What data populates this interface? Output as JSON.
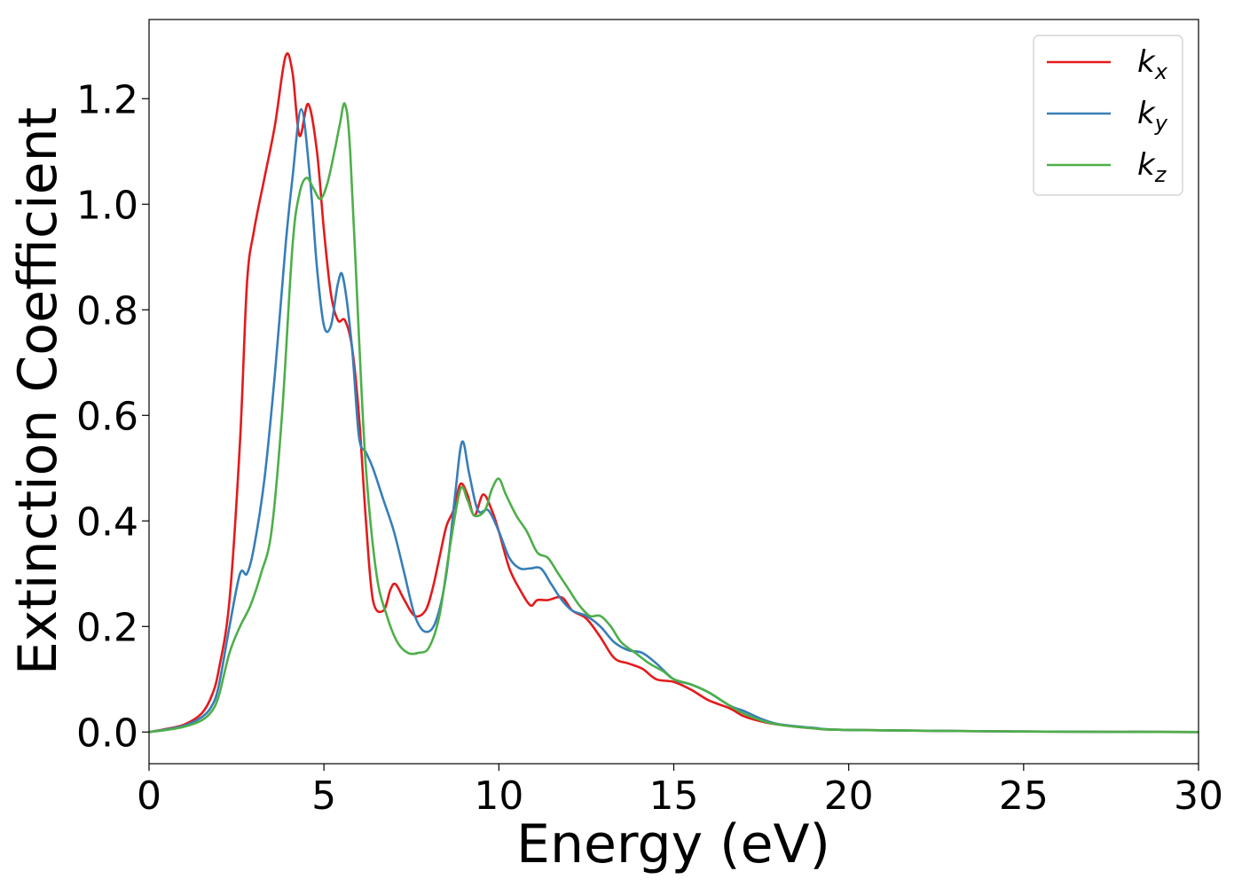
{
  "chart_data": {
    "type": "line",
    "title": "",
    "xlabel": "Energy (eV)",
    "ylabel": "Extinction Coefficient",
    "xlim": [
      0,
      30
    ],
    "ylim": [
      -0.06,
      1.35
    ],
    "xticks": [
      0,
      5,
      10,
      15,
      20,
      25,
      30
    ],
    "xtick_labels": [
      "0",
      "5",
      "10",
      "15",
      "20",
      "25",
      "30"
    ],
    "yticks": [
      0.0,
      0.2,
      0.4,
      0.6,
      0.8,
      1.0,
      1.2
    ],
    "ytick_labels": [
      "0.0",
      "0.2",
      "0.4",
      "0.6",
      "0.8",
      "1.0",
      "1.2"
    ],
    "grid": false,
    "legend_position": "top-right",
    "series": [
      {
        "name": "k",
        "subscript": "x",
        "color": "#e41a1c",
        "x": [
          0,
          0.5,
          1.0,
          1.5,
          1.8,
          2.0,
          2.3,
          2.6,
          2.8,
          3.0,
          3.3,
          3.6,
          3.9,
          4.1,
          4.3,
          4.55,
          4.8,
          5.0,
          5.2,
          5.4,
          5.6,
          5.8,
          6.0,
          6.2,
          6.4,
          6.7,
          6.9,
          7.05,
          7.3,
          7.6,
          7.9,
          8.1,
          8.3,
          8.5,
          8.7,
          8.9,
          9.1,
          9.3,
          9.55,
          9.8,
          10.0,
          10.3,
          10.6,
          10.9,
          11.1,
          11.4,
          11.8,
          12.1,
          12.5,
          12.9,
          13.3,
          13.7,
          14.1,
          14.5,
          15.0,
          15.5,
          16.0,
          16.6,
          17.0,
          17.5,
          18.0,
          19.0,
          20.0,
          25.0,
          30.0
        ],
        "values": [
          0,
          0.006,
          0.014,
          0.035,
          0.07,
          0.12,
          0.25,
          0.55,
          0.85,
          0.95,
          1.05,
          1.15,
          1.28,
          1.25,
          1.13,
          1.19,
          1.1,
          0.95,
          0.83,
          0.78,
          0.78,
          0.73,
          0.6,
          0.4,
          0.25,
          0.23,
          0.27,
          0.28,
          0.25,
          0.22,
          0.23,
          0.27,
          0.33,
          0.39,
          0.42,
          0.47,
          0.45,
          0.41,
          0.45,
          0.42,
          0.38,
          0.31,
          0.27,
          0.24,
          0.25,
          0.25,
          0.255,
          0.23,
          0.215,
          0.18,
          0.14,
          0.13,
          0.12,
          0.1,
          0.095,
          0.08,
          0.06,
          0.045,
          0.03,
          0.02,
          0.014,
          0.007,
          0.004,
          0.001,
          0.0
        ]
      },
      {
        "name": "k",
        "subscript": "y",
        "color": "#377eb8",
        "x": [
          0,
          0.5,
          1.0,
          1.5,
          1.8,
          2.0,
          2.3,
          2.6,
          2.8,
          3.0,
          3.3,
          3.6,
          3.9,
          4.1,
          4.35,
          4.6,
          4.8,
          5.0,
          5.2,
          5.4,
          5.55,
          5.8,
          6.0,
          6.2,
          6.4,
          6.7,
          7.0,
          7.3,
          7.6,
          7.9,
          8.2,
          8.5,
          8.75,
          8.95,
          9.15,
          9.4,
          9.7,
          10.0,
          10.3,
          10.6,
          10.9,
          11.2,
          11.5,
          11.8,
          12.1,
          12.5,
          12.9,
          13.3,
          13.7,
          14.1,
          14.5,
          15.0,
          15.5,
          16.0,
          16.6,
          17.0,
          17.5,
          18.0,
          19.0,
          20.0,
          25.0,
          30.0
        ],
        "values": [
          0,
          0.005,
          0.012,
          0.028,
          0.05,
          0.09,
          0.2,
          0.3,
          0.3,
          0.35,
          0.48,
          0.68,
          0.92,
          1.05,
          1.18,
          1.05,
          0.88,
          0.77,
          0.77,
          0.85,
          0.86,
          0.73,
          0.56,
          0.53,
          0.5,
          0.44,
          0.38,
          0.3,
          0.22,
          0.19,
          0.21,
          0.3,
          0.45,
          0.55,
          0.49,
          0.42,
          0.42,
          0.38,
          0.33,
          0.31,
          0.31,
          0.31,
          0.28,
          0.25,
          0.23,
          0.22,
          0.2,
          0.17,
          0.155,
          0.15,
          0.13,
          0.1,
          0.09,
          0.075,
          0.05,
          0.04,
          0.025,
          0.015,
          0.008,
          0.004,
          0.001,
          0.0
        ]
      },
      {
        "name": "k",
        "subscript": "z",
        "color": "#4daf4a",
        "x": [
          0,
          0.5,
          1.0,
          1.5,
          1.8,
          2.0,
          2.3,
          2.6,
          2.9,
          3.2,
          3.5,
          3.8,
          4.1,
          4.3,
          4.5,
          4.7,
          4.9,
          5.1,
          5.3,
          5.45,
          5.6,
          5.75,
          6.0,
          6.2,
          6.5,
          6.8,
          7.1,
          7.4,
          7.7,
          8.0,
          8.3,
          8.6,
          8.9,
          9.1,
          9.3,
          9.6,
          9.8,
          10.0,
          10.2,
          10.5,
          10.8,
          11.1,
          11.4,
          11.7,
          12.0,
          12.3,
          12.6,
          12.9,
          13.2,
          13.5,
          13.9,
          14.3,
          14.7,
          15.0,
          15.5,
          16.0,
          16.6,
          17.0,
          17.5,
          18.0,
          19.0,
          20.0,
          25.0,
          30.0
        ],
        "values": [
          0,
          0.004,
          0.01,
          0.022,
          0.04,
          0.07,
          0.15,
          0.2,
          0.24,
          0.3,
          0.38,
          0.6,
          0.92,
          1.02,
          1.05,
          1.03,
          1.01,
          1.04,
          1.1,
          1.15,
          1.19,
          1.1,
          0.75,
          0.5,
          0.3,
          0.22,
          0.17,
          0.15,
          0.15,
          0.16,
          0.22,
          0.35,
          0.46,
          0.44,
          0.41,
          0.42,
          0.46,
          0.48,
          0.45,
          0.41,
          0.38,
          0.34,
          0.33,
          0.3,
          0.27,
          0.24,
          0.22,
          0.22,
          0.2,
          0.17,
          0.15,
          0.13,
          0.115,
          0.1,
          0.09,
          0.075,
          0.05,
          0.035,
          0.022,
          0.014,
          0.007,
          0.004,
          0.001,
          0.0
        ]
      }
    ]
  }
}
